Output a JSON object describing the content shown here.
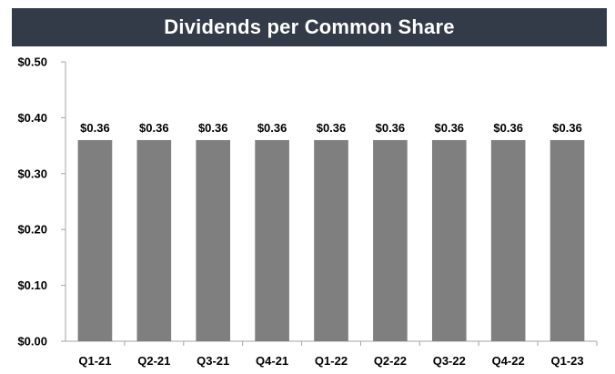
{
  "chart_data": {
    "type": "bar",
    "title": "Dividends per Common Share",
    "categories": [
      "Q1-21",
      "Q2-21",
      "Q3-21",
      "Q4-21",
      "Q1-22",
      "Q2-22",
      "Q3-22",
      "Q4-22",
      "Q1-23"
    ],
    "values": [
      0.36,
      0.36,
      0.36,
      0.36,
      0.36,
      0.36,
      0.36,
      0.36,
      0.36
    ],
    "data_labels": [
      "$0.36",
      "$0.36",
      "$0.36",
      "$0.36",
      "$0.36",
      "$0.36",
      "$0.36",
      "$0.36",
      "$0.36"
    ],
    "yticks": [
      0.0,
      0.1,
      0.2,
      0.3,
      0.4,
      0.5
    ],
    "ytick_labels": [
      "$0.00",
      "$0.10",
      "$0.20",
      "$0.30",
      "$0.40",
      "$0.50"
    ],
    "ylim": [
      0,
      0.5
    ],
    "xlabel": "",
    "ylabel": "",
    "grid": false,
    "legend": "none",
    "bar_color": "#7f7f7f",
    "title_background": "#343b48",
    "title_color": "#ffffff"
  }
}
